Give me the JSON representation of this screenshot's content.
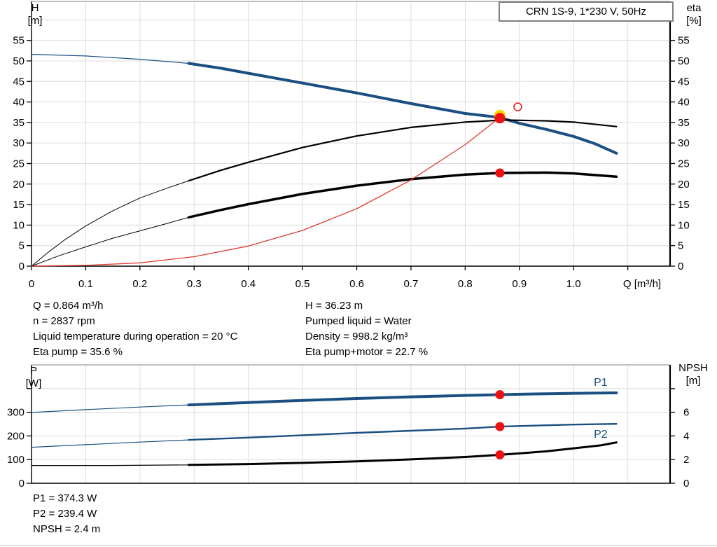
{
  "colors": {
    "curve_blue": "#1b4f82",
    "curve_black": "#000000",
    "system_red": "#dd3b2e",
    "marker_red": "#ee1111",
    "marker_yellow": "#ffd500",
    "grid": "#dcdcdc",
    "frame_top": "#9c9c9c",
    "axis": "#000000",
    "box_border": "#7f7f7f"
  },
  "info": {
    "top_left": [
      "Q = 0.864 m³/h",
      "n = 2837 rpm",
      "Liquid temperature during operation = 20 °C",
      "Eta pump = 35.6 %"
    ],
    "top_right": [
      "H = 36.23 m",
      "Pumped liquid = Water",
      "Density = 998.2 kg/m³",
      "Eta pump+motor = 22.7 %"
    ],
    "bottom": [
      "P1 = 374.3 W",
      "P2 = 239.4 W",
      "NPSH = 2.4 m"
    ]
  },
  "chart_data": [
    {
      "type": "line",
      "title": "CRN 1S-9, 1*230 V, 50Hz",
      "xlabel": "Q [m³/h]",
      "axis_titles": {
        "left": [
          "H",
          "[m]"
        ],
        "right": [
          "eta",
          "[%]"
        ]
      },
      "x_range": [
        0,
        1.178
      ],
      "y_left_range": [
        0,
        64.5
      ],
      "y_right_range": [
        0,
        64.5
      ],
      "x_grid": [
        0.1,
        0.2,
        0.3,
        0.4,
        0.5,
        0.6,
        0.7,
        0.8,
        0.9,
        1.0,
        1.1
      ],
      "y_grid": [
        5,
        10,
        15,
        20,
        25,
        30,
        35,
        40,
        45,
        50,
        55,
        60
      ],
      "x_ticks": [
        0,
        0.1,
        0.2,
        0.3,
        0.4,
        0.5,
        0.6,
        0.7,
        0.8,
        0.9,
        1.0,
        1.1
      ],
      "x_tick_labels": [
        "0",
        "0.1",
        "0.2",
        "0.3",
        "0.4",
        "0.5",
        "0.6",
        "0.7",
        "0.8",
        "0.9",
        "1.0",
        ""
      ],
      "y_ticks_left": [
        0,
        5,
        10,
        15,
        20,
        25,
        30,
        35,
        40,
        45,
        50,
        55
      ],
      "y_tick_labels_left": [
        "0",
        "5",
        "10",
        "15",
        "20",
        "25",
        "30",
        "35",
        "40",
        "45",
        "50",
        "55"
      ],
      "y_ticks_right": [
        0,
        5,
        10,
        15,
        20,
        25,
        30,
        35,
        40,
        45,
        50,
        55
      ],
      "y_tick_labels_right": [
        "0",
        "5",
        "10",
        "15",
        "20",
        "25",
        "30",
        "35",
        "40",
        "45",
        "50",
        "55"
      ],
      "series": [
        {
          "name": "h-curve-low-flow",
          "axis": "left",
          "color": "blue",
          "width": 1.2,
          "points": [
            [
              0,
              51.6
            ],
            [
              0.1,
              51.2
            ],
            [
              0.2,
              50.4
            ],
            [
              0.29,
              49.4
            ]
          ]
        },
        {
          "name": "h-curve",
          "axis": "left",
          "color": "blue",
          "width": 4,
          "points": [
            [
              0.29,
              49.4
            ],
            [
              0.35,
              48.2
            ],
            [
              0.4,
              47.0
            ],
            [
              0.5,
              44.6
            ],
            [
              0.6,
              42.2
            ],
            [
              0.7,
              39.6
            ],
            [
              0.8,
              37.2
            ],
            [
              0.864,
              36.23
            ],
            [
              0.9,
              34.8
            ],
            [
              0.95,
              33.3
            ],
            [
              1.0,
              31.6
            ],
            [
              1.04,
              29.8
            ],
            [
              1.079,
              27.5
            ]
          ]
        },
        {
          "name": "eta-pump-curve-low-flow",
          "axis": "right",
          "color": "black",
          "width": 1,
          "points": [
            [
              0,
              0
            ],
            [
              0.03,
              3.3
            ],
            [
              0.06,
              6.3
            ],
            [
              0.1,
              9.8
            ],
            [
              0.15,
              13.5
            ],
            [
              0.2,
              16.6
            ],
            [
              0.25,
              19.0
            ],
            [
              0.29,
              20.8
            ]
          ]
        },
        {
          "name": "eta-pump-curve",
          "axis": "right",
          "color": "black",
          "width": 2.2,
          "points": [
            [
              0.29,
              20.8
            ],
            [
              0.35,
              23.4
            ],
            [
              0.4,
              25.3
            ],
            [
              0.5,
              28.9
            ],
            [
              0.6,
              31.7
            ],
            [
              0.7,
              33.8
            ],
            [
              0.8,
              35.1
            ],
            [
              0.87,
              35.6
            ],
            [
              0.95,
              35.4
            ],
            [
              1.0,
              35.1
            ],
            [
              1.079,
              34.0
            ]
          ]
        },
        {
          "name": "eta-pump-motor-curve-low-flow",
          "axis": "right",
          "color": "black",
          "width": 1,
          "points": [
            [
              0,
              0
            ],
            [
              0.05,
              2.5
            ],
            [
              0.1,
              4.7
            ],
            [
              0.15,
              6.8
            ],
            [
              0.2,
              8.6
            ],
            [
              0.25,
              10.4
            ],
            [
              0.29,
              11.9
            ]
          ]
        },
        {
          "name": "eta-pump-motor-curve",
          "axis": "right",
          "color": "black",
          "width": 3.5,
          "points": [
            [
              0.29,
              11.9
            ],
            [
              0.35,
              13.7
            ],
            [
              0.4,
              15.1
            ],
            [
              0.5,
              17.6
            ],
            [
              0.6,
              19.6
            ],
            [
              0.7,
              21.2
            ],
            [
              0.8,
              22.3
            ],
            [
              0.864,
              22.7
            ],
            [
              0.95,
              22.8
            ],
            [
              1.0,
              22.6
            ],
            [
              1.079,
              21.8
            ]
          ]
        },
        {
          "name": "system-curve",
          "axis": "left",
          "color": "red",
          "width": 1.3,
          "points": [
            [
              0,
              0
            ],
            [
              0.1,
              0.2
            ],
            [
              0.2,
              0.8
            ],
            [
              0.3,
              2.3
            ],
            [
              0.4,
              4.9
            ],
            [
              0.5,
              8.7
            ],
            [
              0.6,
              14.0
            ],
            [
              0.7,
              21.0
            ],
            [
              0.8,
              29.6
            ],
            [
              0.864,
              36.23
            ]
          ]
        }
      ],
      "markers": [
        {
          "name": "duty-point",
          "style": "duty",
          "axis": "left",
          "x": 0.864,
          "y": 36.23
        },
        {
          "name": "eta-pump-motor-point",
          "style": "dot",
          "axis": "right",
          "x": 0.864,
          "y": 22.7
        },
        {
          "name": "requested-duty-point",
          "style": "open",
          "axis": "left",
          "x": 0.897,
          "y": 38.8
        }
      ],
      "curve_labels": []
    },
    {
      "type": "line",
      "title": "",
      "xlabel": "",
      "axis_titles": {
        "left": [
          "P",
          "[W]"
        ],
        "right": [
          "NPSH",
          "[m]"
        ]
      },
      "x_range": [
        0,
        1.178
      ],
      "y_left_range": [
        0,
        500
      ],
      "y_right_range": [
        0,
        10
      ],
      "x_grid": [
        0.1,
        0.2,
        0.3,
        0.4,
        0.5,
        0.6,
        0.7,
        0.8,
        0.9,
        1.0,
        1.1
      ],
      "y_grid": [
        100,
        200,
        300,
        400
      ],
      "x_ticks": [],
      "x_tick_labels": [],
      "y_ticks_left": [
        0,
        100,
        200,
        300,
        400
      ],
      "y_tick_labels_left": [
        "0",
        "100",
        "200",
        "300",
        ""
      ],
      "y_ticks_right": [
        0,
        2,
        4,
        6,
        8
      ],
      "y_tick_labels_right": [
        "0",
        "2",
        "4",
        "6",
        ""
      ],
      "series": [
        {
          "name": "p1-curve-low-flow",
          "axis": "left",
          "color": "blue",
          "width": 1.2,
          "points": [
            [
              0,
              299
            ],
            [
              0.1,
              311
            ],
            [
              0.2,
              322
            ],
            [
              0.29,
              331
            ]
          ]
        },
        {
          "name": "p1-curve",
          "axis": "left",
          "color": "blue",
          "width": 4,
          "points": [
            [
              0.29,
              331
            ],
            [
              0.4,
              341
            ],
            [
              0.5,
              350
            ],
            [
              0.6,
              358
            ],
            [
              0.7,
              365
            ],
            [
              0.8,
              371
            ],
            [
              0.864,
              374.3
            ],
            [
              0.95,
              378
            ],
            [
              1.0,
              380
            ],
            [
              1.079,
              382
            ]
          ]
        },
        {
          "name": "p2-curve-low-flow",
          "axis": "left",
          "color": "blue",
          "width": 1.2,
          "points": [
            [
              0,
              152
            ],
            [
              0.1,
              163
            ],
            [
              0.2,
              174
            ],
            [
              0.29,
              183
            ]
          ]
        },
        {
          "name": "p2-curve",
          "axis": "left",
          "color": "blue",
          "width": 2.4,
          "points": [
            [
              0.29,
              183
            ],
            [
              0.4,
              193
            ],
            [
              0.5,
              203
            ],
            [
              0.6,
              213
            ],
            [
              0.7,
              222
            ],
            [
              0.8,
              231
            ],
            [
              0.864,
              239.4
            ],
            [
              0.95,
              245
            ],
            [
              1.0,
              248
            ],
            [
              1.079,
              251
            ]
          ]
        },
        {
          "name": "npsh-curve-low-flow",
          "axis": "right",
          "color": "black",
          "width": 1.2,
          "points": [
            [
              0,
              1.5
            ],
            [
              0.15,
              1.5
            ],
            [
              0.29,
              1.55
            ]
          ]
        },
        {
          "name": "npsh-curve",
          "axis": "right",
          "color": "black",
          "width": 3,
          "points": [
            [
              0.29,
              1.55
            ],
            [
              0.4,
              1.62
            ],
            [
              0.5,
              1.72
            ],
            [
              0.6,
              1.85
            ],
            [
              0.7,
              2.02
            ],
            [
              0.8,
              2.22
            ],
            [
              0.864,
              2.4
            ],
            [
              0.95,
              2.7
            ],
            [
              1.0,
              2.95
            ],
            [
              1.05,
              3.2
            ],
            [
              1.079,
              3.45
            ]
          ]
        }
      ],
      "markers": [
        {
          "name": "p1-point",
          "style": "dot",
          "axis": "left",
          "x": 0.864,
          "y": 374.3
        },
        {
          "name": "p2-point",
          "style": "dot",
          "axis": "left",
          "x": 0.864,
          "y": 239.4
        },
        {
          "name": "npsh-point",
          "style": "dot",
          "axis": "right",
          "x": 0.864,
          "y": 2.4
        }
      ],
      "curve_labels": [
        {
          "text": "P1",
          "x": 1.05,
          "y": 411,
          "axis": "left"
        },
        {
          "text": "P2",
          "x": 1.05,
          "y": 192,
          "axis": "left"
        }
      ]
    }
  ]
}
